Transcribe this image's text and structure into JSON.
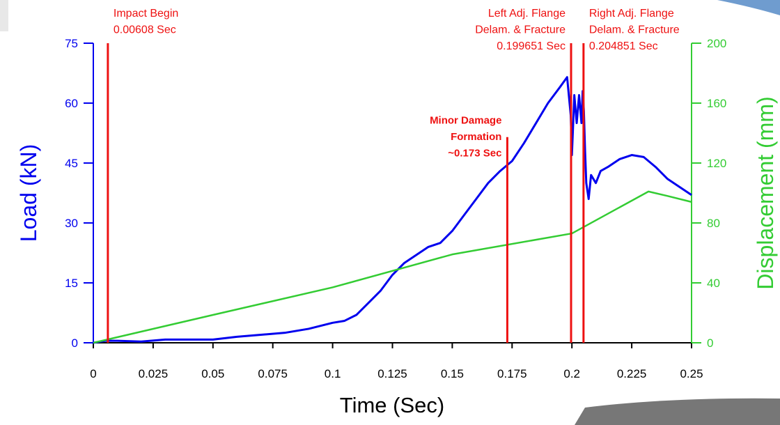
{
  "chart_data": {
    "type": "line",
    "xlabel": "Time (Sec)",
    "ylabel": "Load (kN)",
    "y2label": "Displacement (mm)",
    "xlim": [
      0,
      0.25
    ],
    "xticks": [
      0,
      0.025,
      0.05,
      0.075,
      0.1,
      0.125,
      0.15,
      0.175,
      0.2,
      0.225,
      0.25
    ],
    "ylim": [
      0,
      75
    ],
    "yticks": [
      0,
      15,
      30,
      45,
      60,
      75
    ],
    "y2lim": [
      0,
      200
    ],
    "y2ticks": [
      0,
      40,
      80,
      120,
      160,
      200
    ],
    "ycolor": "#0000ee",
    "y2color": "#33cc33",
    "series": [
      {
        "color": "#0000ee",
        "x": [
          0,
          0.005,
          0.01,
          0.02,
          0.03,
          0.04,
          0.05,
          0.06,
          0.07,
          0.08,
          0.09,
          0.1,
          0.105,
          0.11,
          0.115,
          0.12,
          0.125,
          0.13,
          0.135,
          0.14,
          0.145,
          0.15,
          0.155,
          0.16,
          0.165,
          0.17,
          0.175,
          0.18,
          0.185,
          0.19,
          0.195,
          0.198,
          0.1995,
          0.2,
          0.201,
          0.202,
          0.203,
          0.204,
          0.2045,
          0.205,
          0.2055,
          0.206,
          0.207,
          0.208,
          0.21,
          0.212,
          0.215,
          0.22,
          0.225,
          0.23,
          0.235,
          0.24,
          0.245,
          0.25
        ],
        "values": [
          0,
          0.5,
          0.5,
          0.3,
          0.8,
          0.8,
          0.8,
          1.5,
          2,
          2.5,
          3.5,
          5,
          5.5,
          7,
          10,
          13,
          17,
          20,
          22,
          24,
          25,
          28,
          32,
          36,
          40,
          43,
          45.5,
          50,
          55,
          60,
          64,
          66.5,
          57,
          47,
          62,
          55,
          62,
          55,
          63,
          58,
          48,
          40,
          36,
          42,
          40,
          43,
          44,
          46,
          47,
          46.5,
          44,
          41,
          39,
          37
        ]
      },
      {
        "color": "#33cc33",
        "axis": "y2",
        "x": [
          0,
          0.05,
          0.1,
          0.15,
          0.2,
          0.232,
          0.24,
          0.25
        ],
        "values": [
          0,
          18.6,
          37,
          59,
          73,
          101,
          98,
          94
        ]
      }
    ],
    "annotations": [
      {
        "x": 0.00608,
        "ytop": 75,
        "lines": [
          "Impact Begin",
          "0.00608 Sec"
        ],
        "anchor": "start",
        "bold": false
      },
      {
        "x": 0.173,
        "ytop": 51.5,
        "lines": [
          "Minor Damage",
          "Formation",
          "~0.173 Sec"
        ],
        "anchor": "end",
        "bold": true
      },
      {
        "x": 0.199651,
        "ytop": 75,
        "lines": [
          "Left Adj. Flange",
          "Delam. & Fracture",
          "0.199651 Sec"
        ],
        "anchor": "end",
        "bold": false
      },
      {
        "x": 0.204851,
        "ytop": 75,
        "lines": [
          "Right Adj. Flange",
          "Delam. & Fracture",
          "0.204851 Sec"
        ],
        "anchor": "start",
        "bold": false
      }
    ],
    "annotation_color": "#ee1111"
  }
}
